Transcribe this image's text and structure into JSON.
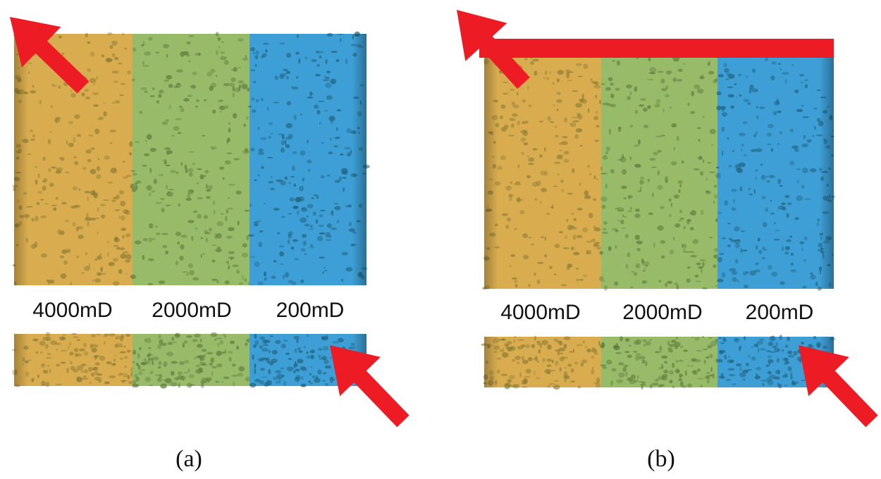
{
  "panels": [
    {
      "caption": "(a)",
      "labels": [
        "4000mD",
        "2000mD",
        "200mD"
      ]
    },
    {
      "caption": "(b)",
      "labels": [
        "4000mD",
        "2000mD",
        "200mD"
      ]
    }
  ]
}
